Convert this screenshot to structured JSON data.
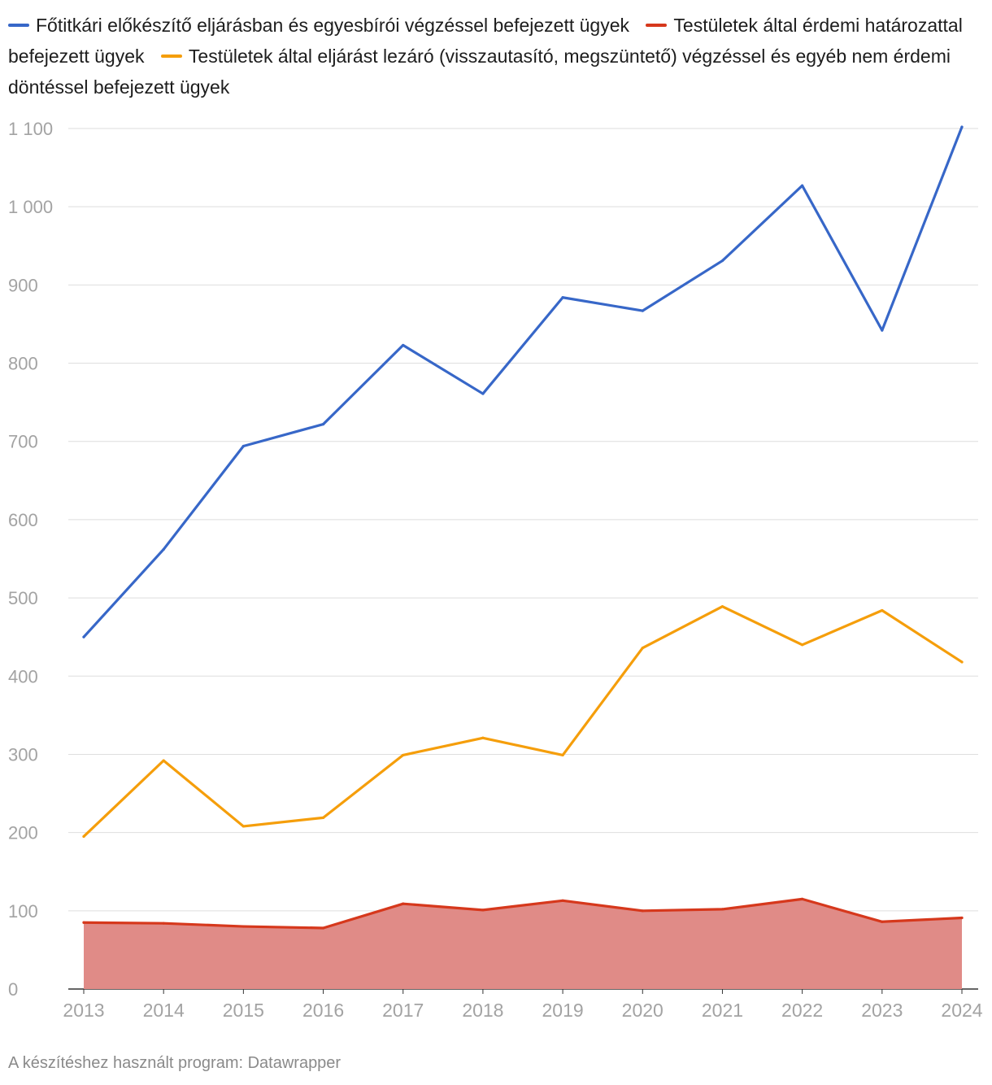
{
  "chart_data": {
    "type": "line",
    "title": "",
    "xlabel": "",
    "ylabel": "",
    "ylim": [
      0,
      1100
    ],
    "yticks": [
      0,
      100,
      200,
      300,
      400,
      500,
      600,
      700,
      800,
      900,
      1000,
      1100
    ],
    "ytick_labels": [
      "0",
      "100",
      "200",
      "300",
      "400",
      "500",
      "600",
      "700",
      "800",
      "900",
      "1 000",
      "1 100"
    ],
    "categories": [
      "2013",
      "2014",
      "2015",
      "2016",
      "2017",
      "2018",
      "2019",
      "2020",
      "2021",
      "2022",
      "2023",
      "2024"
    ],
    "grid": true,
    "legend_position": "top",
    "series": [
      {
        "name": "Főtitkári előkészítő eljárásban és egyesbírói végzéssel befejezett ügyek",
        "color": "#3767c8",
        "fill": false,
        "values": [
          450,
          562,
          694,
          722,
          823,
          761,
          884,
          867,
          931,
          1027,
          842,
          1102
        ]
      },
      {
        "name": "Testületek által érdemi határozattal befejezett ügyek",
        "color": "#d6381c",
        "fill": true,
        "fill_color": "#e08b87",
        "values": [
          85,
          84,
          80,
          78,
          109,
          101,
          113,
          100,
          102,
          115,
          86,
          91
        ]
      },
      {
        "name": "Testületek által eljárást lezáró (visszautasító, megszüntető) végzéssel és egyéb nem érdemi döntéssel befejezett ügyek",
        "color": "#f59e0b",
        "fill": false,
        "values": [
          195,
          292,
          208,
          219,
          299,
          321,
          299,
          436,
          489,
          440,
          484,
          418
        ]
      }
    ]
  },
  "footer": "A készítéshez használt program: Datawrapper"
}
